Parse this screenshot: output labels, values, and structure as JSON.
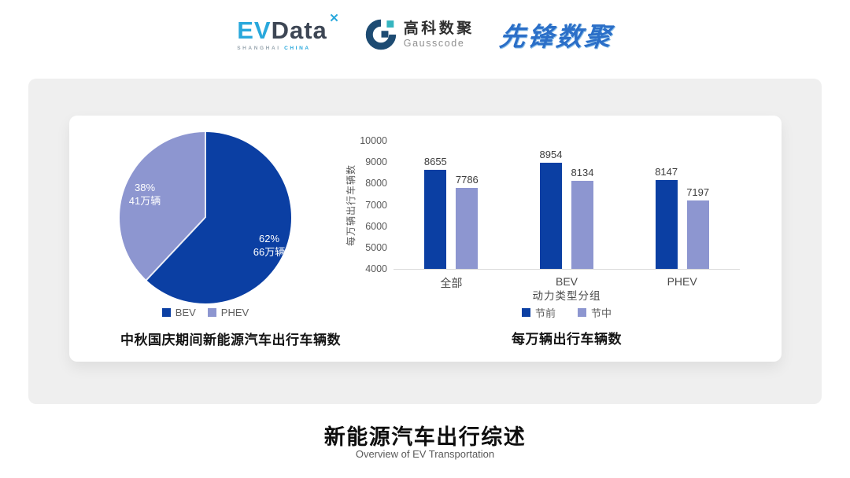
{
  "header": {
    "evdata": {
      "ev": "EV",
      "data": "Data",
      "x_icon": "✕",
      "sub_left": "SHANGHAI",
      "sub_right": "CHINA"
    },
    "gausscode": {
      "cn": "高科数聚",
      "en": "Gausscode"
    },
    "xianfeng": "先锋数聚"
  },
  "colors": {
    "primary_blue": "#0b3fa3",
    "secondary_purple": "#8d96d0",
    "panel_gray": "#efefef",
    "axis_gray": "#d9d9d9",
    "gauss_navy": "#1d4b72",
    "gauss_teal": "#35b5c0",
    "evdata_blue": "#29a8dc",
    "evdata_slate": "#3d4654"
  },
  "chart_data": [
    {
      "type": "pie",
      "title": "中秋国庆期间新能源汽车出行车辆数",
      "labels": [
        "BEV",
        "PHEV"
      ],
      "values_pct": [
        62,
        38
      ],
      "values_abs": [
        "66万辆",
        "41万辆"
      ],
      "slice_labels": [
        [
          "62%",
          "66万辆"
        ],
        [
          "38%",
          "41万辆"
        ]
      ],
      "colors": [
        "#0b3fa3",
        "#8d96d0"
      ],
      "start_angle_deg": 0,
      "direction": "clockwise",
      "legend_position": "bottom"
    },
    {
      "type": "bar",
      "title": "每万辆出行车辆数",
      "categories": [
        "全部",
        "BEV",
        "PHEV"
      ],
      "series": [
        {
          "name": "节前",
          "values": [
            8655,
            8954,
            8147
          ],
          "color": "#0b3fa3"
        },
        {
          "name": "节中",
          "values": [
            7786,
            8134,
            7197
          ],
          "color": "#8d96d0"
        }
      ],
      "xlabel": "动力类型分组",
      "ylabel": "每万辆出行车辆数",
      "ylim": [
        4000,
        10000
      ],
      "ytick_step": 1000,
      "grid": false,
      "legend_position": "bottom"
    }
  ],
  "footer": {
    "title": "新能源汽车出行综述",
    "subtitle": "Overview of EV Transportation"
  }
}
